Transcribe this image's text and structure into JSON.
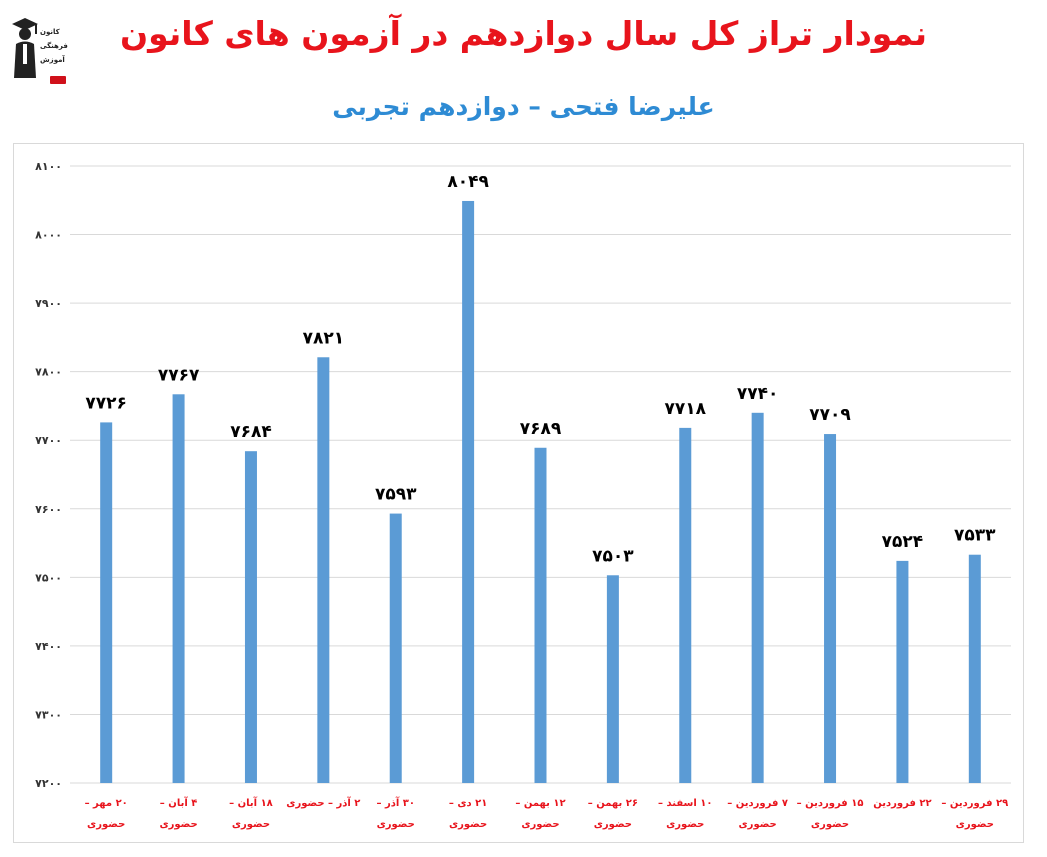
{
  "header": {
    "title": "نمودار تراز کل سال دوازدهم در آزمون های کانون",
    "subtitle": "علیرضا فتحی – دوازدهم تجربی",
    "logo_lines": [
      "کانون",
      "فرهنگی",
      "آموزش"
    ],
    "logo_icon": "graduate-icon"
  },
  "chart_data": {
    "type": "bar",
    "title": "نمودار تراز کل سال دوازدهم در آزمون های کانون",
    "subtitle": "علیرضا فتحی – دوازدهم تجربی",
    "xlabel": "",
    "ylabel": "",
    "ylim": [
      7200,
      8100
    ],
    "yticks": [
      7200,
      7300,
      7400,
      7500,
      7600,
      7700,
      7800,
      7900,
      8000,
      8100
    ],
    "ytick_labels": [
      "۷۲۰۰",
      "۷۳۰۰",
      "۷۴۰۰",
      "۷۵۰۰",
      "۷۶۰۰",
      "۷۷۰۰",
      "۷۸۰۰",
      "۷۹۰۰",
      "۸۰۰۰",
      "۸۱۰۰"
    ],
    "grid": true,
    "legend": "none",
    "bar_color": "#5b9bd5",
    "label_color": "#e8141c",
    "categories": [
      [
        "۲۰ مهر –",
        "حضوری"
      ],
      [
        "۴ آبان –",
        "حضوری"
      ],
      [
        "۱۸ آبان –",
        "حضوری"
      ],
      [
        "۲ آذر – حضوری"
      ],
      [
        "۳۰ آذر –",
        "حضوری"
      ],
      [
        "۲۱ دی –",
        "حضوری"
      ],
      [
        "۱۲ بهمن –",
        "حضوری"
      ],
      [
        "۲۶ بهمن –",
        "حضوری"
      ],
      [
        "۱۰ اسفند –",
        "حضوری"
      ],
      [
        "۷ فروردین –",
        "حضوری"
      ],
      [
        "۱۵ فروردین –",
        "حضوری"
      ],
      [
        "۲۲ فروردین"
      ],
      [
        "۲۹ فروردین –",
        "حضوری"
      ]
    ],
    "values": [
      7726,
      7767,
      7684,
      7821,
      7593,
      8049,
      7689,
      7503,
      7718,
      7740,
      7709,
      7524,
      7533
    ],
    "value_labels": [
      "۷۷۲۶",
      "۷۷۶۷",
      "۷۶۸۴",
      "۷۸۲۱",
      "۷۵۹۳",
      "۸۰۴۹",
      "۷۶۸۹",
      "۷۵۰۳",
      "۷۷۱۸",
      "۷۷۴۰",
      "۷۷۰۹",
      "۷۵۲۴",
      "۷۵۳۳"
    ]
  }
}
